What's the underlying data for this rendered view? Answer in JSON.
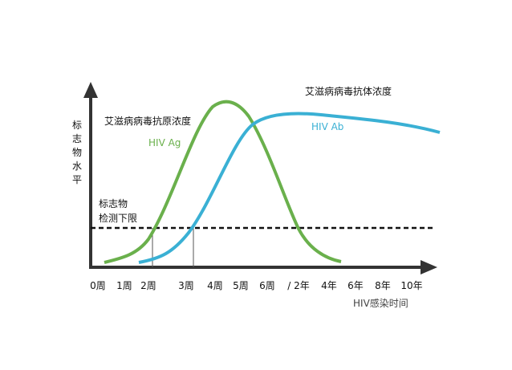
{
  "y_axis_label": [
    "标",
    "志",
    "物",
    "水",
    "平"
  ],
  "antigen": {
    "label_cn": "艾滋病病毒抗原浓度",
    "label_en": "HIV Ag"
  },
  "antibody": {
    "label_cn": "艾滋病病毒抗体浓度",
    "label_en": "HIV Ab"
  },
  "detection_limit": [
    "标志物",
    "检测下限"
  ],
  "x_labels": [
    "0周",
    "1周",
    "2周",
    "3周",
    "4周",
    "5周",
    "6周",
    "/ 2年",
    "4年",
    "6年",
    "8年",
    "10年"
  ],
  "x_axis_label": "HIV感染时间"
}
